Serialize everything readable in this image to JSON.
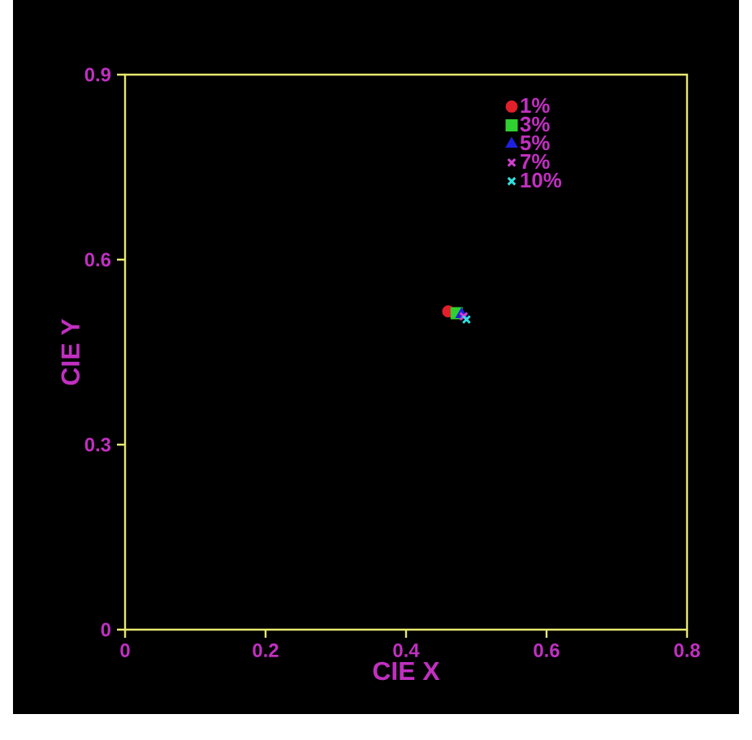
{
  "chart_data": {
    "type": "scatter",
    "xlabel": "CIE X",
    "ylabel": "CIE Y",
    "xlim": [
      0,
      0.8
    ],
    "ylim": [
      0,
      0.9
    ],
    "xticks": [
      0,
      0.2,
      0.4,
      0.6,
      0.8
    ],
    "yticks": [
      0,
      0.3,
      0.6,
      0.9
    ],
    "legend": "top right",
    "series": [
      {
        "name": "1%",
        "color": "#e0202a",
        "marker": "circle",
        "x": [
          0.46
        ],
        "values": [
          0.516
        ]
      },
      {
        "name": "3%",
        "color": "#30d030",
        "marker": "square",
        "x": [
          0.472
        ],
        "values": [
          0.513
        ]
      },
      {
        "name": "5%",
        "color": "#2020e0",
        "marker": "triangle",
        "x": [
          0.479
        ],
        "values": [
          0.511
        ]
      },
      {
        "name": "7%",
        "color": "#d040d0",
        "marker": "cross",
        "x": [
          0.482
        ],
        "values": [
          0.508
        ]
      },
      {
        "name": "10%",
        "color": "#30e0e0",
        "marker": "cross",
        "x": [
          0.486
        ],
        "values": [
          0.503
        ]
      }
    ]
  }
}
